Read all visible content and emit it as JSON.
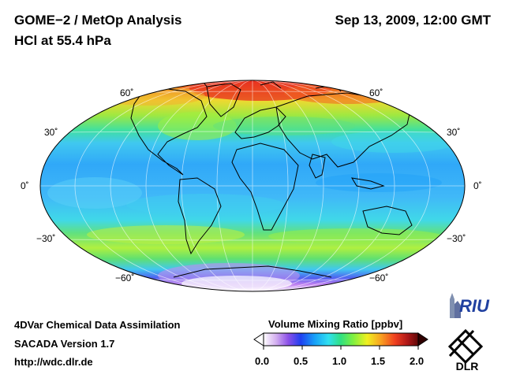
{
  "header": {
    "title_line1": "GOME−2 / MetOp Analysis",
    "title_line2": "HCl at 55.4 hPa",
    "datetime": "Sep 13, 2009, 12:00 GMT"
  },
  "map": {
    "projection": "Mollweide",
    "lat_labels": {
      "n60": "60˚",
      "n30": "30˚",
      "eq": "0˚",
      "s30": "−30˚",
      "s60": "−60˚"
    },
    "field_description": "Volume mixing ratio of HCl, high over northern polar region, low over Antarctic"
  },
  "colorbar": {
    "title": "Volume Mixing Ratio [ppbv]",
    "ticks": [
      "0.0",
      "0.5",
      "1.0",
      "1.5",
      "2.0"
    ],
    "range": [
      0.0,
      2.0
    ],
    "colors": [
      "#ffffff",
      "#d4b0f0",
      "#8c50e8",
      "#2040f0",
      "#18a0f8",
      "#30e0f0",
      "#30e080",
      "#80f040",
      "#f0f020",
      "#f8a020",
      "#f04020",
      "#b01818",
      "#600808"
    ]
  },
  "footer": {
    "line1": "4DVar Chemical Data Assimilation",
    "line2": "SACADA Version 1.7",
    "line3": "http://wdc.dlr.de"
  },
  "logos": {
    "riu": "RIU",
    "dlr": "DLR"
  }
}
